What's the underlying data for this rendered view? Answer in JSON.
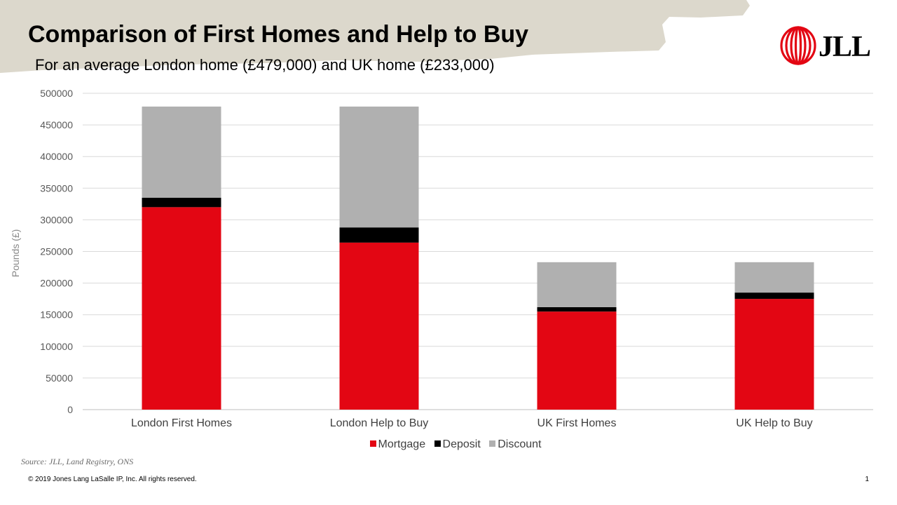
{
  "slide": {
    "title": "Comparison of First Homes and Help to Buy",
    "subtitle": "For an average London home (£479,000) and UK home (£233,000)",
    "logo_text": "JLL",
    "source": "Source: JLL, Land Registry, ONS",
    "copyright": "© 2019 Jones Lang LaSalle IP, Inc. All rights reserved.",
    "page_number": "1"
  },
  "colors": {
    "mortgage": "#e30613",
    "deposit": "#000000",
    "discount": "#b0b0b0",
    "brand_red": "#e30613",
    "brush": "#dcd8cc"
  },
  "chart_data": {
    "type": "bar",
    "stacked": true,
    "categories": [
      "London First Homes",
      "London Help to Buy",
      "UK First Homes",
      "UK Help to Buy"
    ],
    "series": [
      {
        "name": "Mortgage",
        "values": [
          320000,
          264000,
          155000,
          175000
        ]
      },
      {
        "name": "Deposit",
        "values": [
          15000,
          24000,
          7000,
          10000
        ]
      },
      {
        "name": "Discount",
        "values": [
          144000,
          191000,
          71000,
          48000
        ]
      }
    ],
    "ylabel": "Pounds (£)",
    "ylim": [
      0,
      500000
    ],
    "yticks": [
      0,
      50000,
      100000,
      150000,
      200000,
      250000,
      300000,
      350000,
      400000,
      450000,
      500000
    ],
    "grid": true,
    "legend_position": "bottom"
  }
}
